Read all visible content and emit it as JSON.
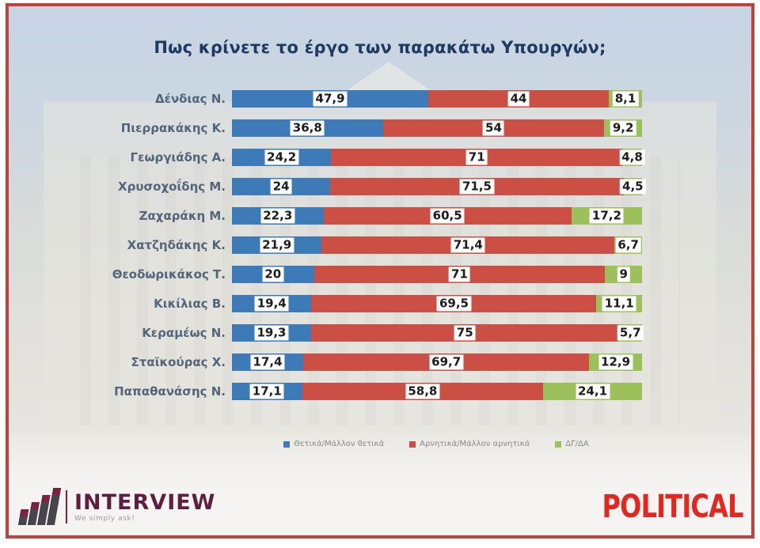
{
  "title": "Πως κρίνετε το έργο των παρακάτω Υπουργών;",
  "chart_data": {
    "type": "bar",
    "orientation": "horizontal",
    "stacked": true,
    "title": "Πως κρίνετε το έργο των παρακάτω Υπουργών;",
    "xlim": [
      0,
      100
    ],
    "grid": false,
    "legend_position": "bottom",
    "value_label_decimal_separator": ",",
    "categories": [
      "Δένδιας Ν.",
      "Πιερρακάκης Κ.",
      "Γεωργιάδης Α.",
      "Χρυσοχοΐδης Μ.",
      "Ζαχαράκη Μ.",
      "Χατζηδάκης Κ.",
      "Θεοδωρικάκος Τ.",
      "Κικίλιας Β.",
      "Κεραμέως Ν.",
      "Σταϊκούρας Χ.",
      "Παπαθανάσης Ν."
    ],
    "series": [
      {
        "name": "Θετικά/Μάλλον θετικά",
        "color": "#3d7ab8",
        "values": [
          47.9,
          36.8,
          24.2,
          24,
          22.3,
          21.9,
          20,
          19.4,
          19.3,
          17.4,
          17.1
        ]
      },
      {
        "name": "Αρνητικά/Μάλλον αρνητικά",
        "color": "#cb4f44",
        "values": [
          44,
          54,
          71,
          71.5,
          60.5,
          71.4,
          71,
          69.5,
          75,
          69.7,
          58.8
        ]
      },
      {
        "name": "ΔΓ/ΔΑ",
        "color": "#9cc15a",
        "values": [
          8.1,
          9.2,
          4.8,
          4.5,
          17.2,
          6.7,
          9,
          11.1,
          5.7,
          12.9,
          24.1
        ]
      }
    ]
  },
  "footer": {
    "interview": {
      "name": "INTERVIEW",
      "tagline": "We simply ask!"
    },
    "political": {
      "name": "POLITICAL"
    }
  },
  "colors": {
    "frame_border": "#c2423b",
    "positive": "#3d7ab8",
    "negative": "#cb4f44",
    "neutral": "#9cc15a",
    "title_text": "#1f3a60",
    "category_text": "#54657a",
    "political_red": "#e2281e",
    "interview_maroon": "#5e1f3f"
  }
}
